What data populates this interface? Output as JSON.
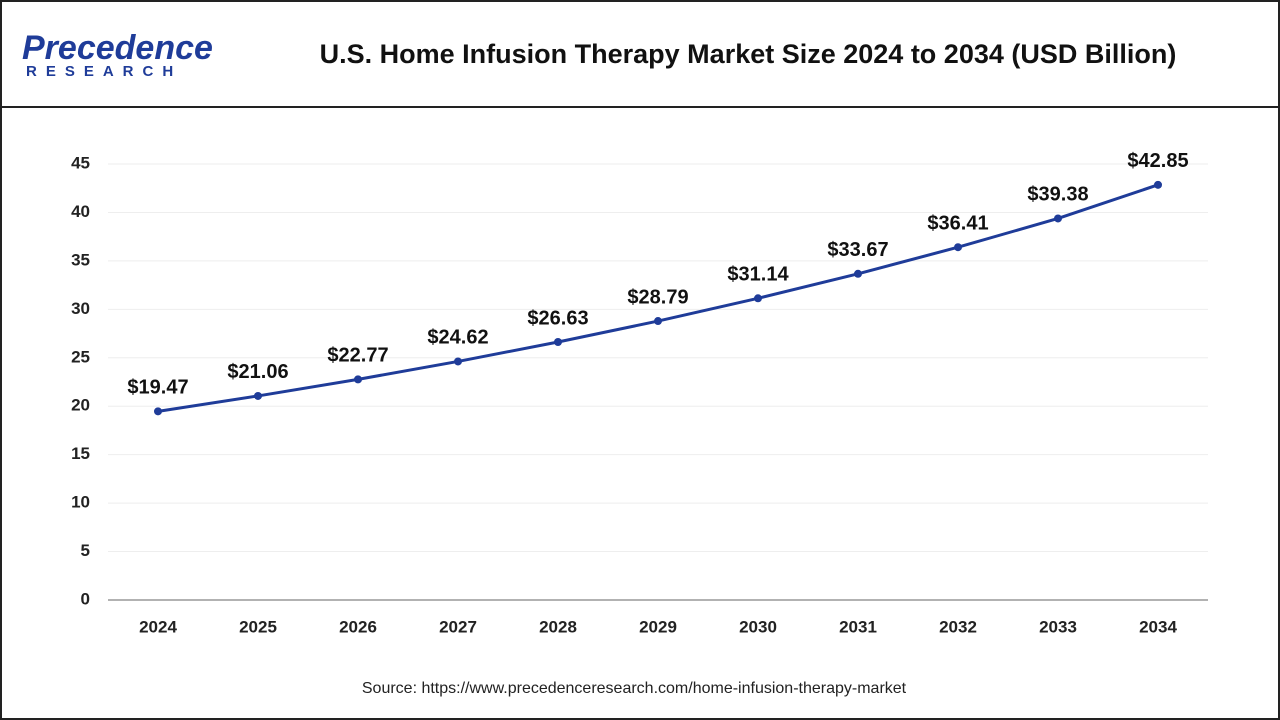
{
  "logo": {
    "name": "Precedence",
    "tagline": "RESEARCH"
  },
  "chart_data": {
    "type": "line",
    "title": "U.S. Home Infusion Therapy Market Size 2024 to 2034 (USD Billion)",
    "source": "Source: https://www.precedenceresearch.com/home-infusion-therapy-market",
    "categories": [
      "2024",
      "2025",
      "2026",
      "2027",
      "2028",
      "2029",
      "2030",
      "2031",
      "2032",
      "2033",
      "2034"
    ],
    "values": [
      19.47,
      21.06,
      22.77,
      24.62,
      26.63,
      28.79,
      31.14,
      33.67,
      36.41,
      39.38,
      42.85
    ],
    "value_labels": [
      "$19.47",
      "$21.06",
      "$22.77",
      "$24.62",
      "$26.63",
      "$28.79",
      "$31.14",
      "$33.67",
      "$36.41",
      "$39.38",
      "$42.85"
    ],
    "color": "#1f3c99",
    "ylim": [
      0,
      45
    ],
    "yticks": [
      0,
      5,
      10,
      15,
      20,
      25,
      30,
      35,
      40,
      45
    ],
    "grid": true
  }
}
